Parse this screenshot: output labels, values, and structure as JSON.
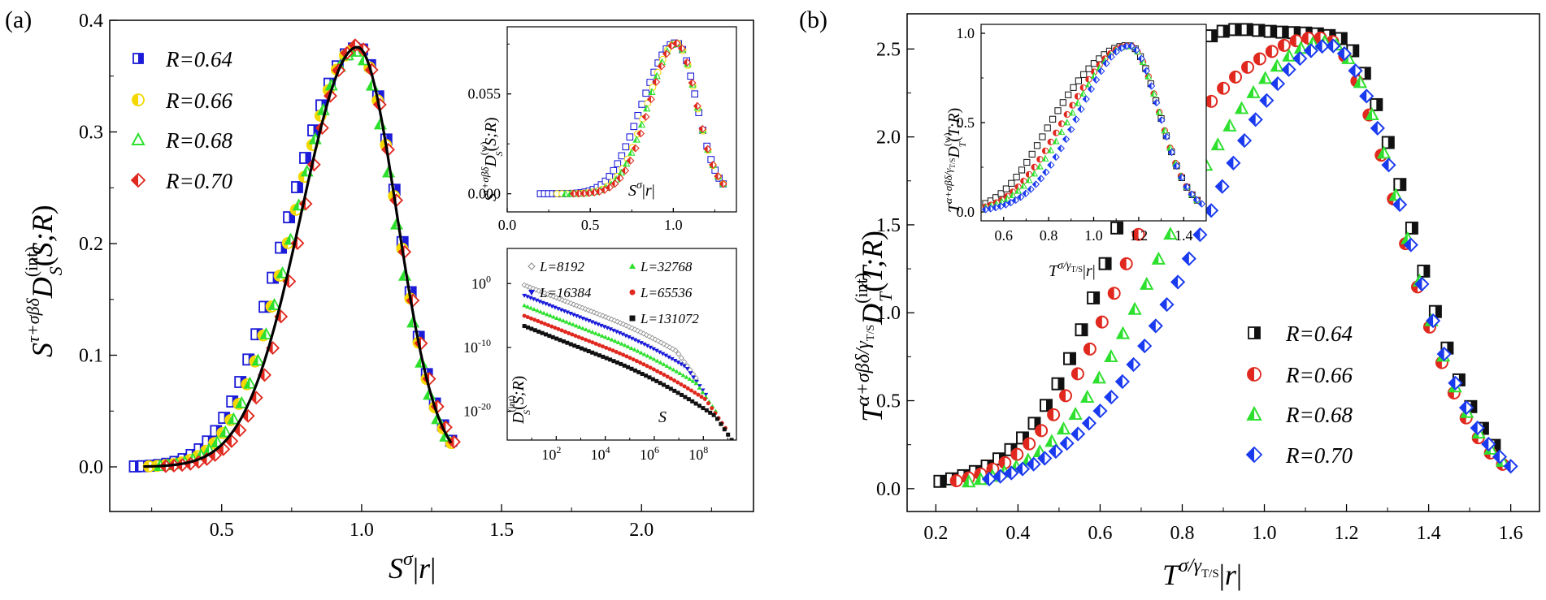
{
  "figure": {
    "panel_a_label": "(a)",
    "panel_b_label": "(b)"
  },
  "colors": {
    "R064": "#1a1ad8",
    "R066": "#f5d800",
    "R068": "#2ee02e",
    "R070": "#e0281e",
    "R064b": "#111111",
    "R066b": "#e0281e",
    "R068b": "#2ee02e",
    "R070b": "#1a3af0",
    "fit": "#000000",
    "L8192": "#888888",
    "L16384": "#1a1ad8",
    "L32768": "#2ee02e",
    "L65536": "#e0281e",
    "L131072": "#111111"
  },
  "chart_data": [
    {
      "id": "a-main",
      "type": "scatter",
      "title": "",
      "xlabel": "S^σ|r|",
      "ylabel": "S^{τ+σβδ} D_S^{(int)}(S;R)",
      "xlim": [
        0.1,
        2.4
      ],
      "ylim": [
        -0.04,
        0.4
      ],
      "xticks": [
        "0.5",
        "1.0",
        "1.5",
        "2.0"
      ],
      "yticks": [
        "0.0",
        "0.1",
        "0.2",
        "0.3",
        "0.4"
      ],
      "legend_position": "top-left",
      "series": [
        {
          "name": "R=0.64",
          "marker": "square-half",
          "color_key": "R064",
          "x0": 0.19,
          "x1": 1.32,
          "n": 40,
          "mu": 0.99,
          "sl": 0.21,
          "sr": 0.14,
          "amp": 0.375,
          "lift": 1.3
        },
        {
          "name": "R=0.66",
          "marker": "circle-half",
          "color_key": "R066",
          "x0": 0.24,
          "x1": 1.32,
          "n": 38,
          "mu": 0.985,
          "sl": 0.2,
          "sr": 0.14,
          "amp": 0.375,
          "lift": 1.0
        },
        {
          "name": "R=0.68",
          "marker": "triangle",
          "color_key": "R068",
          "x0": 0.28,
          "x1": 1.3,
          "n": 36,
          "mu": 0.98,
          "sl": 0.2,
          "sr": 0.14,
          "amp": 0.372,
          "lift": 0.6
        },
        {
          "name": "R=0.70",
          "marker": "diamond-half",
          "color_key": "R070",
          "x0": 0.3,
          "x1": 1.33,
          "n": 36,
          "mu": 0.985,
          "sl": 0.19,
          "sr": 0.145,
          "amp": 0.378,
          "lift": 0.0
        }
      ],
      "fit_curve": {
        "mu": 0.985,
        "sl": 0.2,
        "sr": 0.14,
        "amp": 0.376,
        "x0": 0.22,
        "x1": 1.32
      }
    },
    {
      "id": "a-inset-top",
      "type": "scatter",
      "xlabel": "S^σ|r|",
      "ylabel": "S^{τ+σβδ} D_S^{(w)}(S;R)",
      "xlim": [
        0.0,
        1.38
      ],
      "ylim": [
        -0.01,
        0.092
      ],
      "xticks": [
        "0.0",
        "0.5",
        "1.0"
      ],
      "yticks": [
        "0.000",
        "0.055"
      ],
      "series": [
        {
          "name": "R=0.64",
          "marker": "square-open",
          "color_key": "R064",
          "x0": 0.2,
          "x1": 1.3,
          "n": 46,
          "mu": 1.02,
          "sl": 0.17,
          "sr": 0.12,
          "amp": 0.083,
          "lift": 2.4
        },
        {
          "name": "R=0.66",
          "marker": "circle-open",
          "color_key": "R066",
          "x0": 0.3,
          "x1": 1.3,
          "n": 34,
          "mu": 1.02,
          "sl": 0.16,
          "sr": 0.12,
          "amp": 0.083,
          "lift": 1.2
        },
        {
          "name": "R=0.68",
          "marker": "triangle",
          "color_key": "R068",
          "x0": 0.35,
          "x1": 1.3,
          "n": 32,
          "mu": 1.02,
          "sl": 0.16,
          "sr": 0.12,
          "amp": 0.083,
          "lift": 0.8
        },
        {
          "name": "R=0.70",
          "marker": "diamond-half",
          "color_key": "R070",
          "x0": 0.4,
          "x1": 1.3,
          "n": 30,
          "mu": 1.02,
          "sl": 0.16,
          "sr": 0.12,
          "amp": 0.083,
          "lift": 0.0
        }
      ]
    },
    {
      "id": "a-inset-bottom",
      "type": "scatter",
      "xlabel": "S",
      "ylabel": "D_S^{(int)}(S;R)",
      "xscale": "log",
      "yscale": "log",
      "xlim_log10": [
        0.0,
        9.35
      ],
      "ylim_log10": [
        -24.5,
        5.5
      ],
      "xticks": [
        "10^2",
        "10^4",
        "10^6",
        "10^8"
      ],
      "yticks": [
        "10^0",
        "10^-10",
        "10^-20"
      ],
      "series": [
        {
          "name": "L=8192",
          "color_key": "L8192",
          "logS_end": 7.7,
          "offset": 0.8
        },
        {
          "name": "L=16384",
          "color_key": "L16384",
          "logS_end": 8.1,
          "offset": -0.8
        },
        {
          "name": "L=32768",
          "color_key": "L32768",
          "logS_end": 8.5,
          "offset": -2.4
        },
        {
          "name": "L=65536",
          "color_key": "L65536",
          "logS_end": 8.9,
          "offset": -4.0
        },
        {
          "name": "L=131072",
          "color_key": "L131072",
          "logS_end": 9.3,
          "offset": -5.6
        }
      ]
    },
    {
      "id": "b-main",
      "type": "scatter",
      "xlabel": "T^{σ/γ_{T/S}}|r|",
      "ylabel": "T^{α+σβδ/γ_{T/S}} D_T^{(int)}(T;R)",
      "xlim": [
        0.13,
        1.67
      ],
      "ylim": [
        -0.13,
        2.7
      ],
      "xticks": [
        "0.2",
        "0.4",
        "0.6",
        "0.8",
        "1.0",
        "1.2",
        "1.4",
        "1.6"
      ],
      "yticks": [
        "0.0",
        "0.5",
        "1.0",
        "1.5",
        "2.0",
        "2.5"
      ],
      "legend_position": "lower-right",
      "series": [
        {
          "name": "R=0.64",
          "marker": "square-half",
          "color_key": "R064b",
          "x0": 0.21,
          "x1": 1.56,
          "n": 48,
          "mu": 1.17,
          "sl": 0.33,
          "sr": 0.18,
          "amp": 2.57,
          "lift": 2.2
        },
        {
          "name": "R=0.66",
          "marker": "circle-half",
          "color_key": "R066b",
          "x0": 0.25,
          "x1": 1.58,
          "n": 46,
          "mu": 1.145,
          "sl": 0.31,
          "sr": 0.18,
          "amp": 2.56,
          "lift": 1.4
        },
        {
          "name": "R=0.68",
          "marker": "triangle",
          "color_key": "R068b",
          "x0": 0.28,
          "x1": 1.58,
          "n": 46,
          "mu": 1.155,
          "sl": 0.3,
          "sr": 0.18,
          "amp": 2.54,
          "lift": 0.8
        },
        {
          "name": "R=0.70",
          "marker": "diamond-half",
          "color_key": "R070b",
          "x0": 0.33,
          "x1": 1.6,
          "n": 48,
          "mu": 1.16,
          "sl": 0.3,
          "sr": 0.18,
          "amp": 2.52,
          "lift": 0.0
        }
      ]
    },
    {
      "id": "b-inset",
      "type": "scatter",
      "xlabel": "T^{σ/γ_{T/S}}|r|",
      "ylabel": "T^{α+σβδ/γ_{T/S}} D_T^{(w)}(T;R)",
      "xlim": [
        0.5,
        1.5
      ],
      "ylim": [
        -0.05,
        1.05
      ],
      "xticks": [
        "0.6",
        "0.8",
        "1.0",
        "1.2",
        "1.4"
      ],
      "yticks": [
        "0.0",
        "0.5",
        "1.0"
      ],
      "series": [
        {
          "name": "R=0.64",
          "marker": "square-open",
          "color_key": "R064b",
          "x0": 0.52,
          "x1": 1.46,
          "n": 42,
          "mu": 1.16,
          "sl": 0.24,
          "sr": 0.13,
          "amp": 0.93,
          "lift": 1.8
        },
        {
          "name": "R=0.66",
          "marker": "circle-half",
          "color_key": "R066b",
          "x0": 0.52,
          "x1": 1.46,
          "n": 40,
          "mu": 1.16,
          "sl": 0.23,
          "sr": 0.13,
          "amp": 0.93,
          "lift": 1.1
        },
        {
          "name": "R=0.68",
          "marker": "triangle",
          "color_key": "R068b",
          "x0": 0.52,
          "x1": 1.46,
          "n": 40,
          "mu": 1.16,
          "sl": 0.23,
          "sr": 0.13,
          "amp": 0.93,
          "lift": 0.6
        },
        {
          "name": "R=0.70",
          "marker": "diamond-half",
          "color_key": "R070b",
          "x0": 0.52,
          "x1": 1.48,
          "n": 44,
          "mu": 1.16,
          "sl": 0.22,
          "sr": 0.13,
          "amp": 0.93,
          "lift": 0.0
        }
      ]
    }
  ]
}
